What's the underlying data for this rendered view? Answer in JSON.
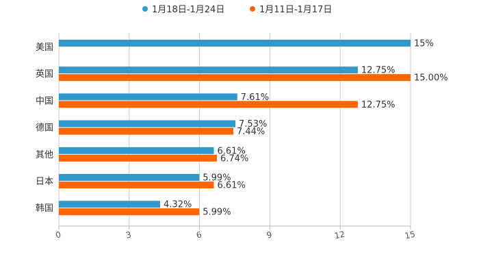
{
  "chart_data": {
    "type": "bar",
    "orientation": "horizontal",
    "title": "",
    "xlabel": "",
    "ylabel": "",
    "xlim": [
      0,
      15
    ],
    "xticks": [
      "0",
      "3",
      "6",
      "9",
      "12",
      "15"
    ],
    "grid": true,
    "legend_position": "top-center",
    "categories": [
      "美国",
      "英国",
      "中国",
      "德国",
      "其他",
      "日本",
      "韩国"
    ],
    "series": [
      {
        "name": "1月18日-1月24日",
        "color": "#3399cc",
        "values": [
          15,
          12.75,
          7.61,
          7.53,
          6.61,
          5.99,
          4.32
        ],
        "labels": [
          "15%",
          "12.75%",
          "7.61%",
          "7.53%",
          "6.61%",
          "5.99%",
          "4.32%"
        ]
      },
      {
        "name": "1月11日-1月17日",
        "color": "#ff6600",
        "values": [
          null,
          15.0,
          12.75,
          7.44,
          6.74,
          6.61,
          5.99
        ],
        "labels": [
          "",
          "15.00%",
          "12.75%",
          "7.44%",
          "6.74%",
          "6.61%",
          "5.99%"
        ]
      }
    ]
  }
}
